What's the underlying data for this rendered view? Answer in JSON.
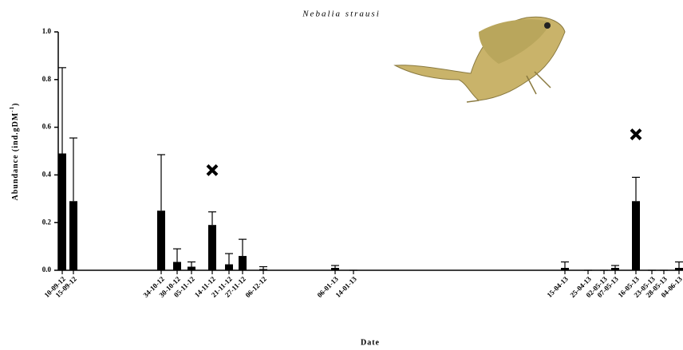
{
  "chart_data": {
    "type": "bar",
    "title": "Nebalia strausi",
    "xlabel": "Date",
    "ylabel": [
      "Abundance (ind.gDM",
      "-1",
      ")"
    ],
    "x": [
      "10-09-12",
      "15-09-12",
      "34-10-12",
      "30-10-12",
      "05-11-12",
      "14-11-12",
      "21-11-12",
      "27-11-12",
      "06-12-12",
      "06-01-13",
      "14-01-13",
      "15-04-13",
      "25-04-13",
      "02-05-13",
      "07-05-13",
      "16-05-13",
      "23-05-13",
      "28-05-13",
      "04-06-13"
    ],
    "values": [
      0.49,
      0.29,
      0.25,
      0.035,
      0.015,
      0.19,
      0.025,
      0.06,
      0.005,
      0.01,
      0,
      0.01,
      0,
      0,
      0.01,
      0.29,
      0,
      0,
      0.01
    ],
    "errors": [
      0.36,
      0.265,
      0.235,
      0.055,
      0.02,
      0.055,
      0.045,
      0.07,
      0.01,
      0.01,
      0,
      0.025,
      0,
      0,
      0.01,
      0.1,
      0,
      0,
      0.025
    ],
    "marker_values": [
      null,
      null,
      null,
      null,
      null,
      0.42,
      null,
      null,
      null,
      null,
      null,
      null,
      null,
      null,
      null,
      0.57,
      null,
      null,
      null
    ],
    "color": "#000000",
    "ylim": [
      0,
      1
    ],
    "yticks": [
      {
        "value": 0,
        "label": "0.0"
      },
      0.2,
      0.4,
      0.6,
      0.8,
      {
        "value": 1,
        "label": "1.0"
      }
    ]
  }
}
